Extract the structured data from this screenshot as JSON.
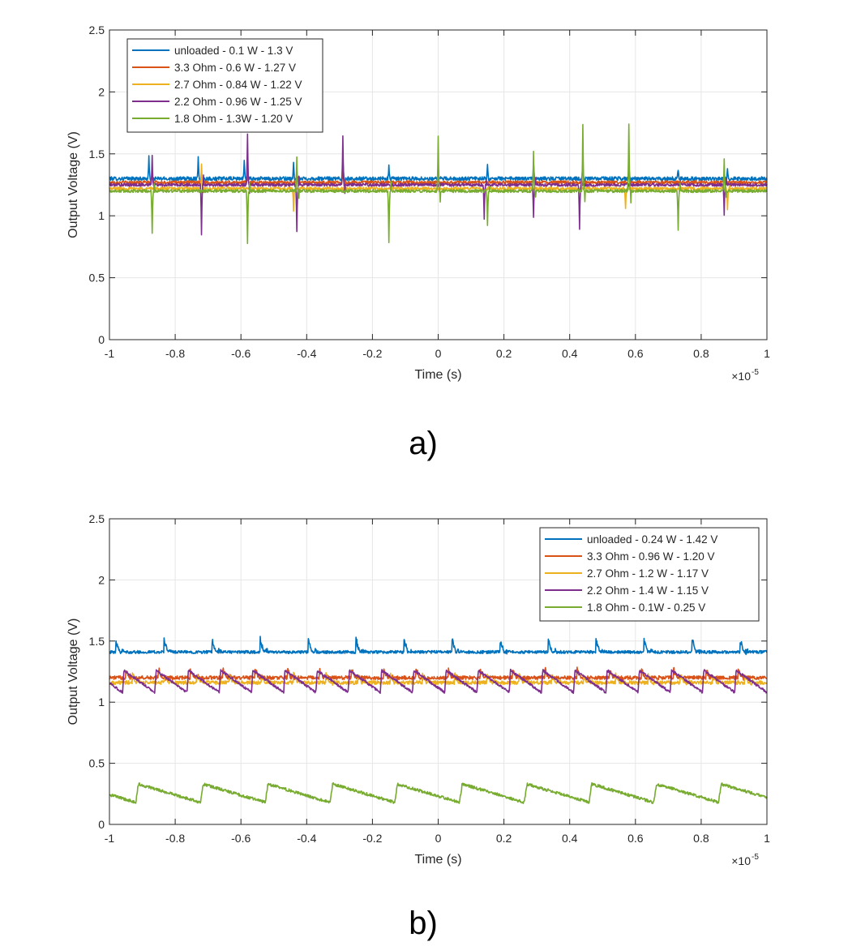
{
  "figure": {
    "panels": [
      "a)",
      "b)"
    ]
  },
  "chart_data": [
    {
      "type": "line",
      "panel_label": "a)",
      "title": "",
      "xlabel": "Time (s)",
      "ylabel": "Output Voltage (V)",
      "x_exponent_label": "×10",
      "x_exponent_power": "-5",
      "xlim": [
        -1e-05,
        1e-05
      ],
      "ylim": [
        0,
        2.5
      ],
      "x_ticks": [
        "-1",
        "-0.8",
        "-0.6",
        "-0.4",
        "-0.2",
        "0",
        "0.2",
        "0.4",
        "0.6",
        "0.8",
        "1"
      ],
      "y_ticks": [
        "0",
        "0.5",
        "1",
        "1.5",
        "2",
        "2.5"
      ],
      "grid": true,
      "legend_position": "top-left",
      "series": [
        {
          "name": "unloaded - 0.1 W - 1.3 V",
          "color": "#0072BD",
          "baseline": 1.3,
          "noise": 0.015,
          "spikes": [
            {
              "x": -0.88,
              "amp": 0.17
            },
            {
              "x": -0.73,
              "amp": 0.18
            },
            {
              "x": -0.59,
              "amp": 0.15
            },
            {
              "x": -0.44,
              "amp": 0.12
            },
            {
              "x": -0.29,
              "amp": 0.16
            },
            {
              "x": -0.15,
              "amp": 0.1
            },
            {
              "x": 0.15,
              "amp": 0.13
            },
            {
              "x": 0.29,
              "amp": 0.12
            },
            {
              "x": 0.44,
              "amp": 0.11
            },
            {
              "x": 0.58,
              "amp": 0.1
            },
            {
              "x": 0.73,
              "amp": 0.08
            },
            {
              "x": 0.88,
              "amp": 0.07
            }
          ]
        },
        {
          "name": "3.3 Ohm - 0.6 W - 1.27 V",
          "color": "#D95319",
          "baseline": 1.27,
          "noise": 0.012,
          "spikes": [
            {
              "x": -0.87,
              "amp": 0.08
            },
            {
              "x": -0.72,
              "amp": 0.1
            },
            {
              "x": -0.58,
              "amp": 0.08
            },
            {
              "x": -0.43,
              "amp": 0.1
            },
            {
              "x": -0.29,
              "amp": 0.1
            },
            {
              "x": 0.29,
              "amp": 0.08
            },
            {
              "x": 0.58,
              "amp": 0.1
            },
            {
              "x": 0.87,
              "amp": 0.08
            }
          ]
        },
        {
          "name": "2.7 Ohm - 0.84 W - 1.22 V",
          "color": "#EDB120",
          "baseline": 1.22,
          "noise": 0.012,
          "spikes": [
            {
              "x": -0.72,
              "amp": 0.2
            },
            {
              "x": -0.44,
              "amp": -0.18
            },
            {
              "x": 0.57,
              "amp": -0.17
            },
            {
              "x": 0.88,
              "amp": -0.17
            }
          ]
        },
        {
          "name": "2.2 Ohm - 0.96 W - 1.25 V",
          "color": "#7E2F8E",
          "baseline": 1.25,
          "noise": 0.012,
          "spikes": [
            {
              "x": -0.87,
              "amp": 0.23
            },
            {
              "x": -0.72,
              "amp": -0.4
            },
            {
              "x": -0.58,
              "amp": 0.42
            },
            {
              "x": -0.43,
              "amp": -0.38
            },
            {
              "x": -0.29,
              "amp": 0.4
            },
            {
              "x": 0.14,
              "amp": -0.28
            },
            {
              "x": 0.29,
              "amp": -0.27
            },
            {
              "x": 0.43,
              "amp": -0.36
            },
            {
              "x": 0.87,
              "amp": -0.24
            }
          ]
        },
        {
          "name": "1.8 Ohm - 1.3W - 1.20 V",
          "color": "#77AC30",
          "baseline": 1.2,
          "noise": 0.012,
          "spikes": [
            {
              "x": -0.87,
              "amp": -0.35
            },
            {
              "x": -0.58,
              "amp": -0.43
            },
            {
              "x": -0.43,
              "amp": 0.27
            },
            {
              "x": -0.15,
              "amp": -0.42
            },
            {
              "x": 0.0,
              "amp": 0.44
            },
            {
              "x": 0.15,
              "amp": -0.27
            },
            {
              "x": 0.29,
              "amp": 0.32
            },
            {
              "x": 0.44,
              "amp": 0.53
            },
            {
              "x": 0.58,
              "amp": 0.53
            },
            {
              "x": 0.73,
              "amp": -0.32
            },
            {
              "x": 0.87,
              "amp": 0.25
            }
          ]
        }
      ]
    },
    {
      "type": "line",
      "panel_label": "b)",
      "title": "",
      "xlabel": "Time (s)",
      "ylabel": "Output Voltage (V)",
      "x_exponent_label": "×10",
      "x_exponent_power": "-5",
      "xlim": [
        -1e-05,
        1e-05
      ],
      "ylim": [
        0,
        2.5
      ],
      "x_ticks": [
        "-1",
        "-0.8",
        "-0.6",
        "-0.4",
        "-0.2",
        "0",
        "0.2",
        "0.4",
        "0.6",
        "0.8",
        "1"
      ],
      "y_ticks": [
        "0",
        "0.5",
        "1",
        "1.5",
        "2",
        "2.5"
      ],
      "grid": true,
      "legend_position": "top-right",
      "series": [
        {
          "name": "unloaded - 0.24 W - 1.42 V",
          "color": "#0072BD",
          "baseline": 1.41,
          "noise": 0.012,
          "periodic_spikes": {
            "start": -0.98,
            "period": 0.146,
            "amp": 0.1
          }
        },
        {
          "name": "3.3 Ohm - 0.96 W - 1.20 V",
          "color": "#D95319",
          "baseline": 1.2,
          "noise": 0.015,
          "periodic_spikes": {
            "start": -0.95,
            "period": 0.098,
            "amp": 0.07
          }
        },
        {
          "name": "2.7 Ohm - 1.2 W - 1.17 V",
          "color": "#EDB120",
          "baseline": 1.16,
          "noise": 0.015,
          "periodic_spikes": {
            "start": -0.93,
            "period": 0.098,
            "amp": 0.07
          }
        },
        {
          "name": "2.2 Ohm - 1.4 W - 1.15 V",
          "color": "#7E2F8E",
          "baseline": 1.15,
          "noise": 0.01,
          "sawtooth": {
            "start": -0.96,
            "period": 0.098,
            "high": 1.26,
            "low": 1.08
          }
        },
        {
          "name": "1.8 Ohm - 0.1W - 0.25 V",
          "color": "#77AC30",
          "baseline": 0.25,
          "noise": 0.012,
          "sawtooth": {
            "start": -0.92,
            "period": 0.197,
            "high": 0.33,
            "low": 0.18
          }
        }
      ]
    }
  ]
}
